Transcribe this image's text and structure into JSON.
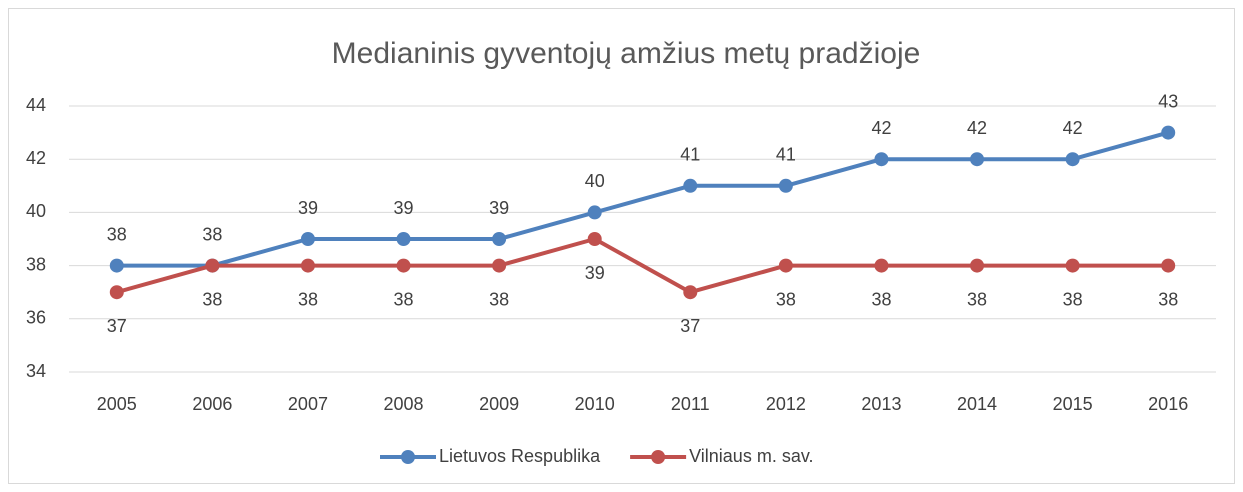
{
  "chart_data": {
    "type": "line",
    "title": "Medianinis gyventojų amžius metų pradžioje",
    "categories": [
      "2005",
      "2006",
      "2007",
      "2008",
      "2009",
      "2010",
      "2011",
      "2012",
      "2013",
      "2014",
      "2015",
      "2016"
    ],
    "series": [
      {
        "name": "Lietuvos Respublika",
        "color": "#4f81bd",
        "values": [
          38,
          38,
          39,
          39,
          39,
          40,
          41,
          41,
          42,
          42,
          42,
          43
        ],
        "label_position": "above"
      },
      {
        "name": "Vilniaus m. sav.",
        "color": "#c0504d",
        "values": [
          37,
          38,
          38,
          38,
          38,
          39,
          37,
          38,
          38,
          38,
          38,
          38
        ],
        "label_position": "below"
      }
    ],
    "ylim": [
      34,
      44
    ],
    "yticks": [
      34,
      36,
      38,
      40,
      42,
      44
    ],
    "grid": true,
    "legend": "bottom"
  }
}
